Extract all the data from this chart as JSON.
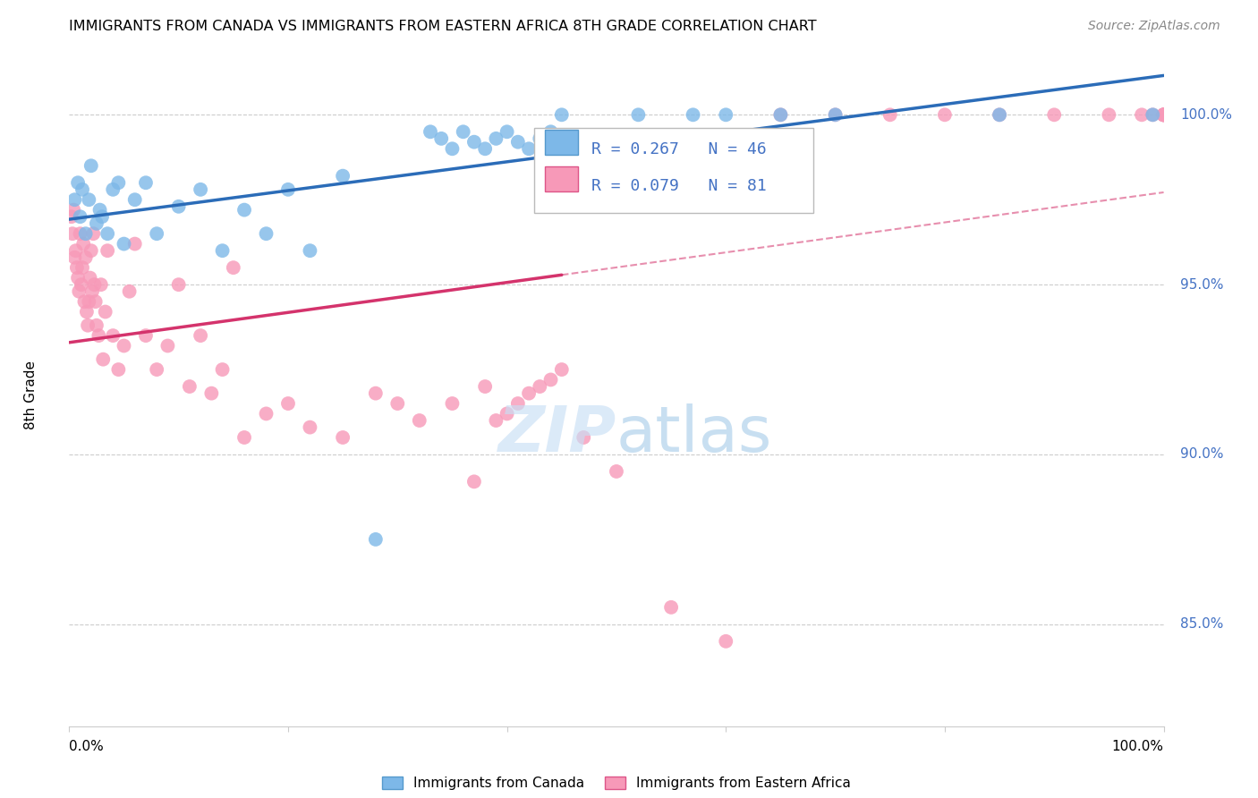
{
  "title": "IMMIGRANTS FROM CANADA VS IMMIGRANTS FROM EASTERN AFRICA 8TH GRADE CORRELATION CHART",
  "source": "Source: ZipAtlas.com",
  "ylabel": "8th Grade",
  "R1": 0.267,
  "N1": 46,
  "R2": 0.079,
  "N2": 81,
  "color_canada": "#7db8e8",
  "color_eastern": "#f799b8",
  "color_line_canada": "#2b6cb8",
  "color_line_eastern": "#d4336c",
  "legend_label1": "Immigrants from Canada",
  "legend_label2": "Immigrants from Eastern Africa",
  "xlim": [
    0,
    100
  ],
  "ylim": [
    82.0,
    101.5
  ],
  "ytick_vals": [
    85.0,
    90.0,
    95.0,
    100.0
  ],
  "ytick_labels": [
    "85.0%",
    "90.0%",
    "95.0%",
    "100.0%"
  ],
  "canada_x": [
    0.5,
    0.8,
    1.0,
    1.2,
    1.5,
    1.8,
    2.0,
    2.5,
    2.8,
    3.0,
    3.5,
    4.0,
    4.5,
    5.0,
    6.0,
    7.0,
    8.0,
    10.0,
    12.0,
    14.0,
    16.0,
    18.0,
    20.0,
    22.0,
    25.0,
    28.0,
    33.0,
    34.0,
    35.0,
    36.0,
    37.0,
    38.0,
    39.0,
    40.0,
    41.0,
    42.0,
    43.0,
    44.0,
    45.0,
    52.0,
    57.0,
    60.0,
    65.0,
    70.0,
    85.0,
    99.0
  ],
  "canada_y": [
    97.5,
    98.0,
    97.0,
    97.8,
    96.5,
    97.5,
    98.5,
    96.8,
    97.2,
    97.0,
    96.5,
    97.8,
    98.0,
    96.2,
    97.5,
    98.0,
    96.5,
    97.3,
    97.8,
    96.0,
    97.2,
    96.5,
    97.8,
    96.0,
    98.2,
    87.5,
    99.5,
    99.3,
    99.0,
    99.5,
    99.2,
    99.0,
    99.3,
    99.5,
    99.2,
    99.0,
    99.3,
    99.5,
    100.0,
    100.0,
    100.0,
    100.0,
    100.0,
    100.0,
    100.0,
    100.0
  ],
  "eastern_x": [
    0.2,
    0.3,
    0.4,
    0.5,
    0.6,
    0.7,
    0.8,
    0.9,
    1.0,
    1.1,
    1.2,
    1.3,
    1.4,
    1.5,
    1.6,
    1.7,
    1.8,
    1.9,
    2.0,
    2.1,
    2.2,
    2.3,
    2.4,
    2.5,
    2.7,
    2.9,
    3.1,
    3.3,
    3.5,
    4.0,
    4.5,
    5.0,
    5.5,
    6.0,
    7.0,
    8.0,
    9.0,
    10.0,
    11.0,
    12.0,
    13.0,
    14.0,
    15.0,
    16.0,
    18.0,
    20.0,
    22.0,
    25.0,
    28.0,
    30.0,
    32.0,
    35.0,
    37.0,
    38.0,
    39.0,
    40.0,
    41.0,
    42.0,
    43.0,
    44.0,
    45.0,
    47.0,
    50.0,
    55.0,
    60.0,
    65.0,
    70.0,
    75.0,
    80.0,
    85.0,
    90.0,
    95.0,
    98.0,
    99.0,
    100.0,
    100.0,
    100.0,
    100.0,
    100.0,
    100.0,
    100.0
  ],
  "eastern_y": [
    97.0,
    96.5,
    97.2,
    95.8,
    96.0,
    95.5,
    95.2,
    94.8,
    96.5,
    95.0,
    95.5,
    96.2,
    94.5,
    95.8,
    94.2,
    93.8,
    94.5,
    95.2,
    96.0,
    94.8,
    96.5,
    95.0,
    94.5,
    93.8,
    93.5,
    95.0,
    92.8,
    94.2,
    96.0,
    93.5,
    92.5,
    93.2,
    94.8,
    96.2,
    93.5,
    92.5,
    93.2,
    95.0,
    92.0,
    93.5,
    91.8,
    92.5,
    95.5,
    90.5,
    91.2,
    91.5,
    90.8,
    90.5,
    91.8,
    91.5,
    91.0,
    91.5,
    89.2,
    92.0,
    91.0,
    91.2,
    91.5,
    91.8,
    92.0,
    92.2,
    92.5,
    90.5,
    89.5,
    85.5,
    84.5,
    100.0,
    100.0,
    100.0,
    100.0,
    100.0,
    100.0,
    100.0,
    100.0,
    100.0,
    100.0,
    100.0,
    100.0,
    100.0,
    100.0,
    100.0,
    100.0
  ]
}
